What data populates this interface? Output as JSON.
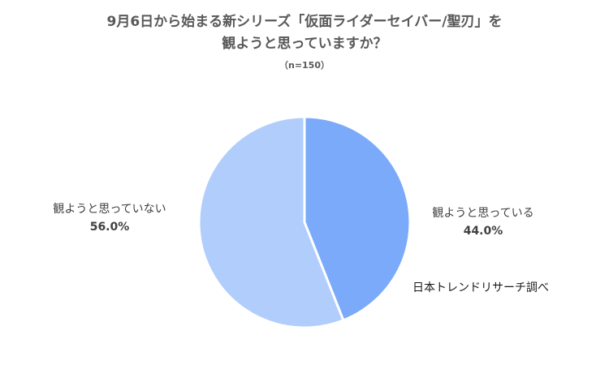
{
  "chart_data": {
    "type": "pie",
    "title_line1": "9月6日から始まる新シリーズ「仮面ライダーセイバー/聖刃」を",
    "title_line2": "観ようと思っていますか？",
    "subtitle": "（n=150）",
    "slices": [
      {
        "label": "観ようと思っている",
        "value": 44.0,
        "display": "44.0%",
        "color": "#7aaaf9"
      },
      {
        "label": "観ようと思っていない",
        "value": 56.0,
        "display": "56.0%",
        "color": "#b0cdfc"
      }
    ],
    "source": "日本トレンドリサーチ調べ"
  }
}
